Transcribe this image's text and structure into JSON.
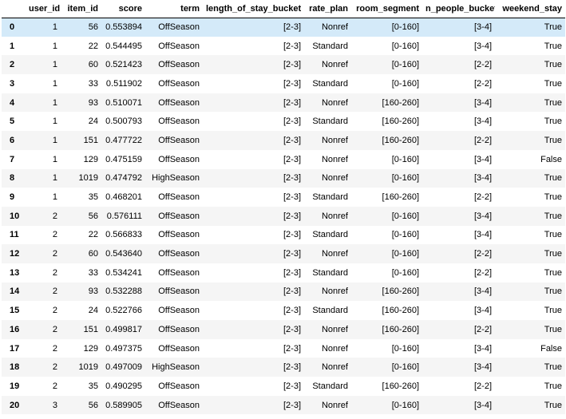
{
  "table": {
    "columns": [
      "",
      "user_id",
      "item_id",
      "score",
      "term",
      "length_of_stay_bucket",
      "rate_plan",
      "room_segment",
      "n_people_bucket",
      "weekend_stay"
    ],
    "rows": [
      {
        "index": "0",
        "cells": [
          "1",
          "56",
          "0.553894",
          "OffSeason",
          "[2-3]",
          "Nonref",
          "[0-160]",
          "[3-4]",
          "True"
        ]
      },
      {
        "index": "1",
        "cells": [
          "1",
          "22",
          "0.544495",
          "OffSeason",
          "[2-3]",
          "Standard",
          "[0-160]",
          "[3-4]",
          "True"
        ]
      },
      {
        "index": "2",
        "cells": [
          "1",
          "60",
          "0.521423",
          "OffSeason",
          "[2-3]",
          "Nonref",
          "[0-160]",
          "[2-2]",
          "True"
        ]
      },
      {
        "index": "3",
        "cells": [
          "1",
          "33",
          "0.511902",
          "OffSeason",
          "[2-3]",
          "Standard",
          "[0-160]",
          "[2-2]",
          "True"
        ]
      },
      {
        "index": "4",
        "cells": [
          "1",
          "93",
          "0.510071",
          "OffSeason",
          "[2-3]",
          "Nonref",
          "[160-260]",
          "[3-4]",
          "True"
        ]
      },
      {
        "index": "5",
        "cells": [
          "1",
          "24",
          "0.500793",
          "OffSeason",
          "[2-3]",
          "Standard",
          "[160-260]",
          "[3-4]",
          "True"
        ]
      },
      {
        "index": "6",
        "cells": [
          "1",
          "151",
          "0.477722",
          "OffSeason",
          "[2-3]",
          "Nonref",
          "[160-260]",
          "[2-2]",
          "True"
        ]
      },
      {
        "index": "7",
        "cells": [
          "1",
          "129",
          "0.475159",
          "OffSeason",
          "[2-3]",
          "Nonref",
          "[0-160]",
          "[3-4]",
          "False"
        ]
      },
      {
        "index": "8",
        "cells": [
          "1",
          "1019",
          "0.474792",
          "HighSeason",
          "[2-3]",
          "Nonref",
          "[0-160]",
          "[3-4]",
          "True"
        ]
      },
      {
        "index": "9",
        "cells": [
          "1",
          "35",
          "0.468201",
          "OffSeason",
          "[2-3]",
          "Standard",
          "[160-260]",
          "[2-2]",
          "True"
        ]
      },
      {
        "index": "10",
        "cells": [
          "2",
          "56",
          "0.576111",
          "OffSeason",
          "[2-3]",
          "Nonref",
          "[0-160]",
          "[3-4]",
          "True"
        ]
      },
      {
        "index": "11",
        "cells": [
          "2",
          "22",
          "0.566833",
          "OffSeason",
          "[2-3]",
          "Standard",
          "[0-160]",
          "[3-4]",
          "True"
        ]
      },
      {
        "index": "12",
        "cells": [
          "2",
          "60",
          "0.543640",
          "OffSeason",
          "[2-3]",
          "Nonref",
          "[0-160]",
          "[2-2]",
          "True"
        ]
      },
      {
        "index": "13",
        "cells": [
          "2",
          "33",
          "0.534241",
          "OffSeason",
          "[2-3]",
          "Standard",
          "[0-160]",
          "[2-2]",
          "True"
        ]
      },
      {
        "index": "14",
        "cells": [
          "2",
          "93",
          "0.532288",
          "OffSeason",
          "[2-3]",
          "Nonref",
          "[160-260]",
          "[3-4]",
          "True"
        ]
      },
      {
        "index": "15",
        "cells": [
          "2",
          "24",
          "0.522766",
          "OffSeason",
          "[2-3]",
          "Standard",
          "[160-260]",
          "[3-4]",
          "True"
        ]
      },
      {
        "index": "16",
        "cells": [
          "2",
          "151",
          "0.499817",
          "OffSeason",
          "[2-3]",
          "Nonref",
          "[160-260]",
          "[2-2]",
          "True"
        ]
      },
      {
        "index": "17",
        "cells": [
          "2",
          "129",
          "0.497375",
          "OffSeason",
          "[2-3]",
          "Nonref",
          "[0-160]",
          "[3-4]",
          "False"
        ]
      },
      {
        "index": "18",
        "cells": [
          "2",
          "1019",
          "0.497009",
          "HighSeason",
          "[2-3]",
          "Nonref",
          "[0-160]",
          "[3-4]",
          "True"
        ]
      },
      {
        "index": "19",
        "cells": [
          "2",
          "35",
          "0.490295",
          "OffSeason",
          "[2-3]",
          "Standard",
          "[160-260]",
          "[2-2]",
          "True"
        ]
      },
      {
        "index": "20",
        "cells": [
          "3",
          "56",
          "0.589905",
          "OffSeason",
          "[2-3]",
          "Nonref",
          "[0-160]",
          "[3-4]",
          "True"
        ]
      }
    ],
    "selected_row": "0",
    "colors": {
      "stripe": "#f5f5f5",
      "selected": "#d4eaf9",
      "header_rule": "#000000"
    }
  }
}
